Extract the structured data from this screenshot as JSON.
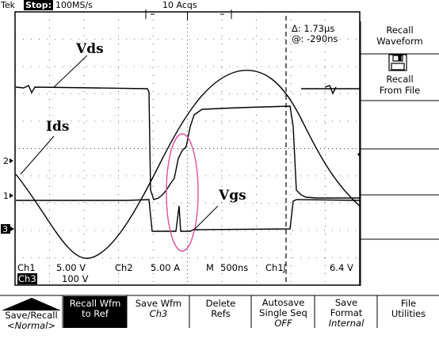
{
  "header": {
    "brand": "Tek",
    "run_state": "Stop:",
    "sample_rate": "100MS/s",
    "acquisitions": "10 Acqs"
  },
  "cursor_readout": {
    "delta": "Δ: 1.73µs",
    "at": "@: -290ns"
  },
  "waveform_labels": {
    "vds": "Vds",
    "ids": "Ids",
    "vgs": "Vgs"
  },
  "channel_markers": {
    "ch2": "2",
    "ch1": "1",
    "ch3": "3"
  },
  "status": {
    "ch1_label": "Ch1",
    "ch1_scale": "5.00 V",
    "ch2_label": "Ch2",
    "ch2_scale": "5.00 A",
    "timebase_label": "M",
    "timebase": "500ns",
    "trigger_source": "Ch1",
    "trigger_slope": "∫",
    "trigger_level": "6.4 V",
    "ch3_label": "Ch3",
    "ch3_scale": "100 V"
  },
  "side_menu": {
    "recall_waveform": [
      "Recall",
      "Waveform"
    ],
    "recall_from_file": [
      "Recall",
      "From File"
    ]
  },
  "bottom_menu": [
    {
      "line1": "Save/Recall",
      "line2": "<Normal>"
    },
    {
      "line1": "Recall Wfm",
      "line2": "to Ref"
    },
    {
      "line1": "Save Wfm",
      "line2": "Ch3"
    },
    {
      "line1": "Delete",
      "line2": "Refs"
    },
    {
      "line1": "Autosave",
      "line2": "Single Seq",
      "line3": "OFF"
    },
    {
      "line1": "Save",
      "line2": "Format",
      "line3": "Internal"
    },
    {
      "line1": "File",
      "line2": "Utilities"
    }
  ],
  "colors": {
    "trace": "#000000",
    "highlight_ellipse": "#e0509a",
    "menu_selected_bg": "#000000"
  }
}
